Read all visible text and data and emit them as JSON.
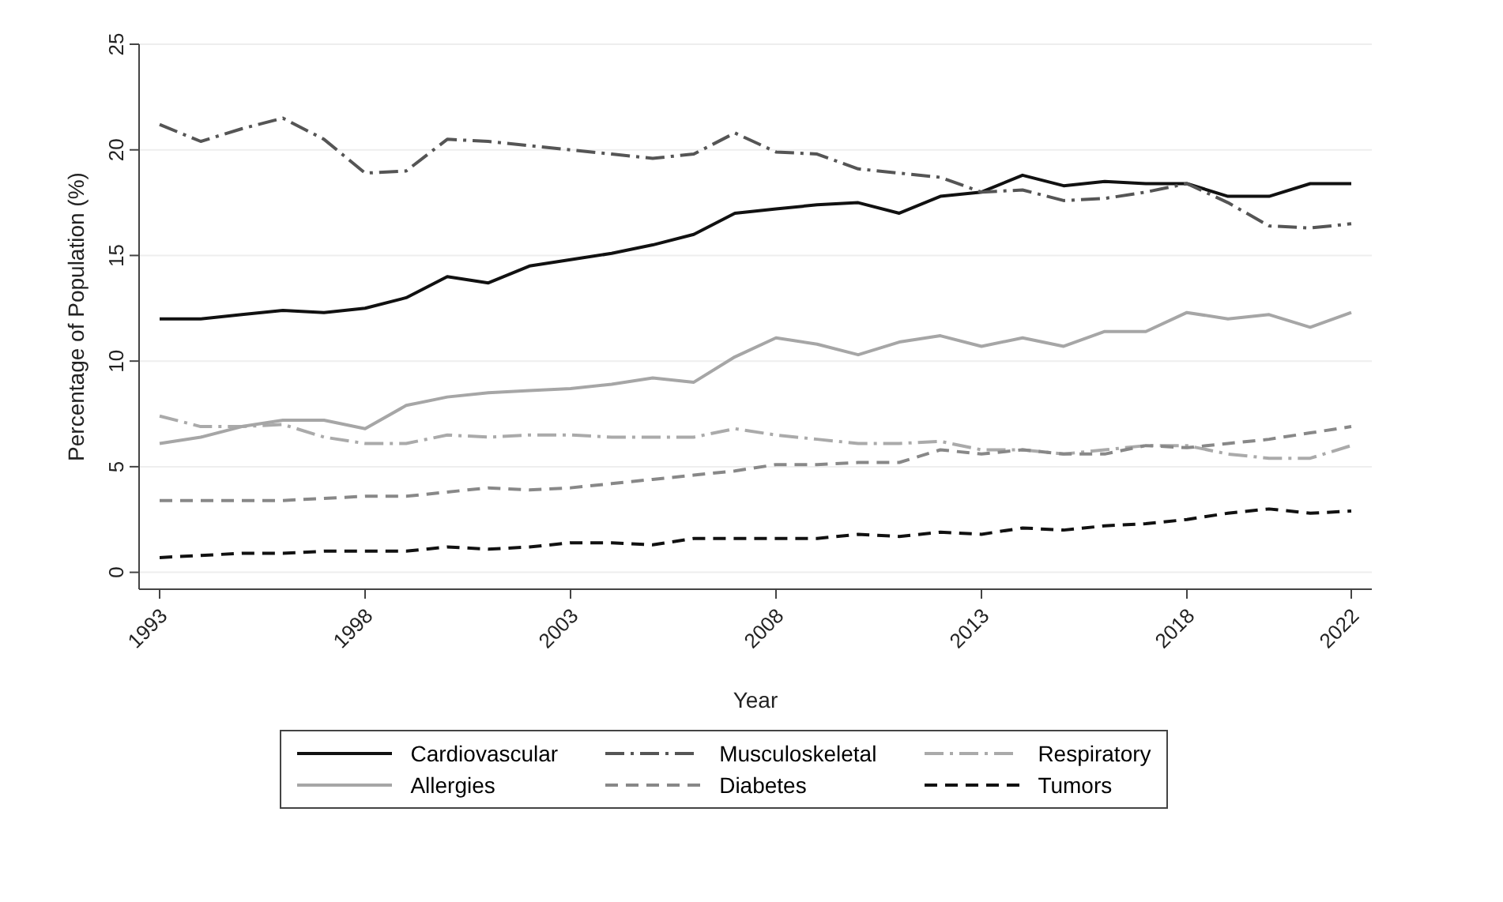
{
  "chart_data": {
    "type": "line",
    "xlabel": "Year",
    "ylabel": "Percentage of Population (%)",
    "x": [
      1993,
      1994,
      1995,
      1996,
      1997,
      1998,
      1999,
      2000,
      2001,
      2002,
      2003,
      2004,
      2005,
      2006,
      2007,
      2008,
      2009,
      2010,
      2011,
      2012,
      2013,
      2014,
      2015,
      2016,
      2017,
      2018,
      2019,
      2020,
      2021,
      2022
    ],
    "xlim": [
      1992.5,
      2022.5
    ],
    "xticks": [
      1993,
      1998,
      2003,
      2008,
      2013,
      2018,
      2022
    ],
    "ylim": [
      -0.8,
      25
    ],
    "yticks": [
      0,
      5,
      10,
      15,
      20,
      25
    ],
    "grid": "y",
    "legend": "bottom",
    "marker": "none",
    "series": [
      {
        "name": "Cardiovascular",
        "color": "#111111",
        "line_style": "solid",
        "values": [
          12.0,
          12.0,
          12.2,
          12.4,
          12.3,
          12.5,
          13.0,
          14.0,
          13.7,
          14.5,
          14.8,
          15.1,
          15.5,
          16.0,
          17.0,
          17.2,
          17.4,
          17.5,
          17.0,
          17.8,
          18.0,
          18.8,
          18.3,
          18.5,
          18.4,
          18.4,
          17.8,
          17.8,
          18.4,
          18.4
        ]
      },
      {
        "name": "Musculoskeletal",
        "color": "#555555",
        "line_style": "dashdot",
        "values": [
          21.2,
          20.4,
          21.0,
          21.5,
          20.5,
          18.9,
          19.0,
          20.5,
          20.4,
          20.2,
          20.0,
          19.8,
          19.6,
          19.8,
          20.8,
          19.9,
          19.8,
          19.1,
          18.9,
          18.7,
          18.0,
          18.1,
          17.6,
          17.7,
          18.0,
          18.4,
          17.5,
          16.4,
          16.3,
          16.5
        ]
      },
      {
        "name": "Respiratory",
        "color": "#aaaaaa",
        "line_style": "dashdot",
        "values": [
          7.4,
          6.9,
          6.9,
          7.0,
          6.4,
          6.1,
          6.1,
          6.5,
          6.4,
          6.5,
          6.5,
          6.4,
          6.4,
          6.4,
          6.8,
          6.5,
          6.3,
          6.1,
          6.1,
          6.2,
          5.8,
          5.8,
          5.6,
          5.8,
          6.0,
          6.0,
          5.6,
          5.4,
          5.4,
          6.0
        ]
      },
      {
        "name": "Allergies",
        "color": "#a6a6a6",
        "line_style": "solid",
        "values": [
          6.1,
          6.4,
          6.9,
          7.2,
          7.2,
          6.8,
          7.9,
          8.3,
          8.5,
          8.6,
          8.7,
          8.9,
          9.2,
          9.0,
          10.2,
          11.1,
          10.8,
          10.3,
          10.9,
          11.2,
          10.7,
          11.1,
          10.7,
          11.4,
          11.4,
          12.3,
          12.0,
          12.2,
          11.6,
          12.3
        ]
      },
      {
        "name": "Diabetes",
        "color": "#888888",
        "line_style": "dashed",
        "values": [
          3.4,
          3.4,
          3.4,
          3.4,
          3.5,
          3.6,
          3.6,
          3.8,
          4.0,
          3.9,
          4.0,
          4.2,
          4.4,
          4.6,
          4.8,
          5.1,
          5.1,
          5.2,
          5.2,
          5.8,
          5.6,
          5.8,
          5.6,
          5.6,
          6.0,
          5.9,
          6.1,
          6.3,
          6.6,
          6.9
        ]
      },
      {
        "name": "Tumors",
        "color": "#111111",
        "line_style": "dashed",
        "values": [
          0.7,
          0.8,
          0.9,
          0.9,
          1.0,
          1.0,
          1.0,
          1.2,
          1.1,
          1.2,
          1.4,
          1.4,
          1.3,
          1.6,
          1.6,
          1.6,
          1.6,
          1.8,
          1.7,
          1.9,
          1.8,
          2.1,
          2.0,
          2.2,
          2.3,
          2.5,
          2.8,
          3.0,
          2.8,
          2.9
        ]
      }
    ]
  }
}
